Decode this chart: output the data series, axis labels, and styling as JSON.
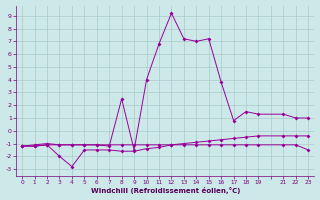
{
  "line1_x": [
    0,
    1,
    2,
    3,
    4,
    5,
    6,
    7,
    8,
    9,
    10,
    11,
    12,
    13,
    14,
    15,
    16,
    17,
    18,
    19,
    21,
    22,
    23
  ],
  "line1_y": [
    -1.2,
    -1.2,
    -1.1,
    -1.1,
    -1.1,
    -1.1,
    -1.1,
    -1.1,
    -1.1,
    -1.1,
    -1.1,
    -1.1,
    -1.1,
    -1.1,
    -1.1,
    -1.1,
    -1.1,
    -1.1,
    -1.1,
    -1.1,
    -1.1,
    -1.1,
    -1.5
  ],
  "line2_x": [
    0,
    1,
    2,
    3,
    4,
    5,
    6,
    7,
    8,
    9,
    10,
    11,
    12,
    13,
    14,
    15,
    16,
    17,
    18,
    19,
    21,
    22,
    23
  ],
  "line2_y": [
    -1.2,
    -1.2,
    -1.1,
    -2.0,
    -2.8,
    -1.5,
    -1.5,
    -1.5,
    -1.6,
    -1.6,
    -1.4,
    -1.3,
    -1.1,
    -1.0,
    -0.9,
    -0.8,
    -0.7,
    -0.6,
    -0.5,
    -0.4,
    -0.4,
    -0.4,
    -0.4
  ],
  "line3_x": [
    0,
    1,
    2,
    3,
    4,
    5,
    6,
    7,
    8,
    9,
    10,
    11,
    12,
    13,
    14,
    15,
    16,
    17,
    18,
    19,
    21,
    22,
    23
  ],
  "line3_y": [
    -1.2,
    -1.1,
    -1.0,
    -1.1,
    -1.1,
    -1.1,
    -1.1,
    -1.2,
    2.5,
    -1.5,
    4.0,
    6.8,
    9.2,
    7.2,
    7.0,
    7.2,
    3.8,
    0.8,
    1.5,
    1.3,
    1.3,
    1.0,
    1.0
  ],
  "bg_color": "#cce8e8",
  "line_color": "#990099",
  "grid_color": "#aacccc",
  "xlabel": "Windchill (Refroidissement éolien,°C)",
  "xtick_labels": [
    "0",
    "1",
    "2",
    "3",
    "4",
    "5",
    "6",
    "7",
    "8",
    "9",
    "10",
    "11",
    "12",
    "13",
    "14",
    "15",
    "16",
    "17",
    "18",
    "19",
    "",
    "21",
    "22",
    "23"
  ],
  "xtick_pos": [
    0,
    1,
    2,
    3,
    4,
    5,
    6,
    7,
    8,
    9,
    10,
    11,
    12,
    13,
    14,
    15,
    16,
    17,
    18,
    19,
    20,
    21,
    22,
    23
  ],
  "ytick_labels": [
    "9",
    "8",
    "7",
    "6",
    "5",
    "4",
    "3",
    "2",
    "1",
    "0",
    "-1",
    "-2",
    "-3"
  ],
  "ytick_pos": [
    9,
    8,
    7,
    6,
    5,
    4,
    3,
    2,
    1,
    0,
    -1,
    -2,
    -3
  ],
  "xlim": [
    -0.5,
    23.5
  ],
  "ylim": [
    -3.5,
    9.8
  ]
}
